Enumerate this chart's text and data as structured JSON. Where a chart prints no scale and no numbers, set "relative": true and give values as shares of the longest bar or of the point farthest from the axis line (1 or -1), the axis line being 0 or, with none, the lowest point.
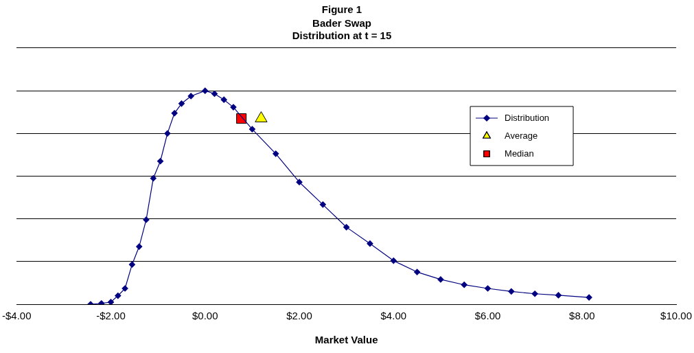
{
  "chart_data": {
    "type": "line",
    "title": "Figure 1",
    "subtitle": "Bader Swap\nDistribution at t = 15",
    "xlabel": "Market Value",
    "relative": true,
    "grid": "y",
    "legend": "top right",
    "tick_labels": "x",
    "xlim": [
      -4,
      10
    ],
    "xticks": [
      {
        "value": -4,
        "label": "-$4.00"
      },
      {
        "value": -2,
        "label": "-$2.00"
      },
      {
        "value": 0,
        "label": "$0.00"
      },
      {
        "value": 2,
        "label": "$2.00"
      },
      {
        "value": 4,
        "label": "$4.00"
      },
      {
        "value": 6,
        "label": "$6.00"
      },
      {
        "value": 8,
        "label": "$8.00"
      },
      {
        "value": 10,
        "label": "$10.00"
      }
    ],
    "series": [
      {
        "name": "Distribution",
        "color": "#000080",
        "marker": "diamond",
        "line_style": "solid",
        "x": [
          -2.43,
          -2.2,
          -2.0,
          -1.85,
          -1.7,
          -1.55,
          -1.4,
          -1.25,
          -1.1,
          -0.95,
          -0.8,
          -0.65,
          -0.5,
          -0.3,
          0,
          0.2,
          0.4,
          0.6,
          1.0,
          1.5,
          2.0,
          2.5,
          3.0,
          3.5,
          4.0,
          4.5,
          5.0,
          5.5,
          6.0,
          6.5,
          7.0,
          7.5,
          8.15
        ],
        "values": [
          0,
          0.004,
          0.01,
          0.04,
          0.074,
          0.186,
          0.27,
          0.396,
          0.59,
          0.67,
          0.8,
          0.895,
          0.94,
          0.975,
          1,
          0.986,
          0.958,
          0.923,
          0.82,
          0.705,
          0.572,
          0.467,
          0.361,
          0.284,
          0.204,
          0.151,
          0.116,
          0.091,
          0.074,
          0.06,
          0.049,
          0.042,
          0.032
        ]
      },
      {
        "name": "Average",
        "type": "scatter",
        "color": "#ffff00",
        "marker": "triangle",
        "x": [
          1.19
        ],
        "values": [
          0.87
        ]
      },
      {
        "name": "Median",
        "type": "scatter",
        "color": "#ff0000",
        "marker": "square",
        "x": [
          0.77
        ],
        "values": [
          0.87
        ]
      }
    ]
  }
}
